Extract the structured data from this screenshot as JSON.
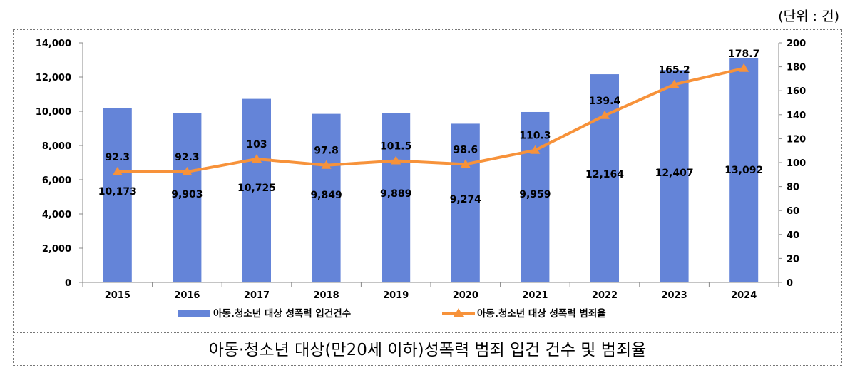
{
  "unit_label": "(단위 : 건)",
  "caption": "아동·청소년 대상(만20세 이하)성폭력 범죄 입건 건수 및 범죄율",
  "chart_data": {
    "type": "bar",
    "categories": [
      "2015",
      "2016",
      "2017",
      "2018",
      "2019",
      "2020",
      "2021",
      "2022",
      "2023",
      "2024"
    ],
    "series": [
      {
        "name": "아동.청소년 대상 성폭력 입건건수",
        "type": "bar",
        "axis": "left",
        "color": "#6484D8",
        "values": [
          10173,
          9903,
          10725,
          9849,
          9889,
          9274,
          9959,
          12164,
          12407,
          13092
        ],
        "labels": [
          "10,173",
          "9,903",
          "10,725",
          "9,849",
          "9,889",
          "9,274",
          "9,959",
          "12,164",
          "12,407",
          "13,092"
        ]
      },
      {
        "name": "아동.청소년 대상 성폭력 범죄율",
        "type": "line",
        "axis": "right",
        "color": "#F7923A",
        "values": [
          92.3,
          92.3,
          103,
          97.8,
          101.5,
          98.6,
          110.3,
          139.4,
          165.2,
          178.7
        ],
        "labels": [
          "92.3",
          "92.3",
          "103",
          "97.8",
          "101.5",
          "98.6",
          "110.3",
          "139.4",
          "165.2",
          "178.7"
        ]
      }
    ],
    "y_left": {
      "min": 0,
      "max": 14000,
      "step": 2000,
      "tick_labels": [
        "0",
        "2,000",
        "4,000",
        "6,000",
        "8,000",
        "10,000",
        "12,000",
        "14,000"
      ]
    },
    "y_right": {
      "min": 0,
      "max": 200,
      "step": 20,
      "tick_labels": [
        "0",
        "20",
        "40",
        "60",
        "80",
        "100",
        "120",
        "140",
        "160",
        "180",
        "200"
      ]
    },
    "grid": false,
    "legend_position": "bottom"
  }
}
